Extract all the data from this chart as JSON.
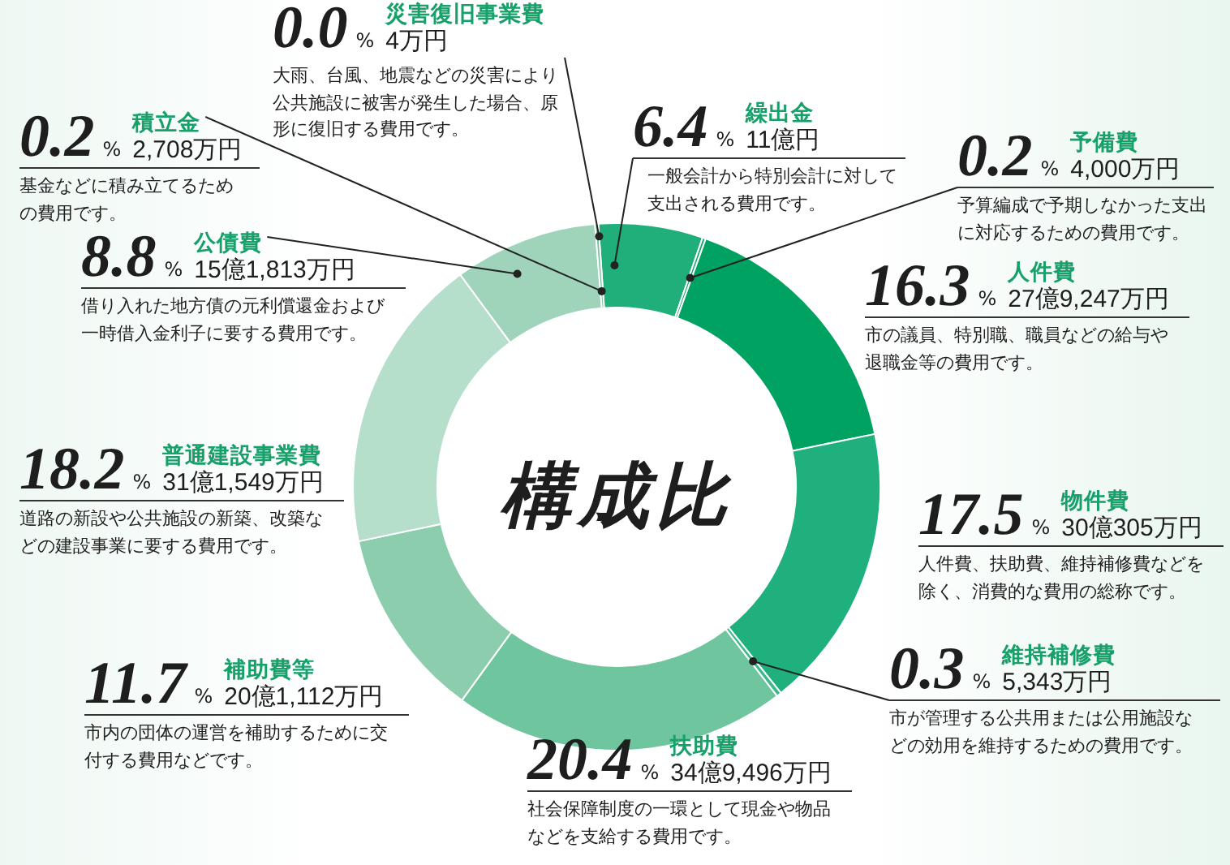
{
  "chart_data": {
    "type": "donut",
    "title": "構成比",
    "categories": [
      "繰出金",
      "予備費",
      "人件費",
      "物件費",
      "維持補修費",
      "扶助費",
      "補助費等",
      "普通建設事業費",
      "公債費",
      "積立金",
      "災害復旧事業費"
    ],
    "values": [
      6.4,
      0.2,
      16.3,
      17.5,
      0.3,
      20.4,
      11.7,
      18.2,
      8.8,
      0.2,
      0.0
    ],
    "colors": [
      "#20ae7a",
      "#16a870",
      "#00a262",
      "#1fb07e",
      "#3db98b",
      "#6ec59e",
      "#8ccdae",
      "#b5decb",
      "#9fd4bb",
      "#6fbf98",
      "#3a9c74"
    ],
    "value_labels": [
      "6.4%",
      "0.2%",
      "16.3%",
      "17.5%",
      "0.3%",
      "20.4%",
      "11.7%",
      "18.2%",
      "8.8%",
      "0.2%",
      "0.0%"
    ],
    "annotations": [
      "11億円",
      "一般会計から特別会計に対して支出される費用です。",
      "4,000万円",
      "予算編成で予期しなかった支出に対応するための費用です。",
      "27億9,247万円",
      "市の議員、特別職、職員などの給与や退職金等の費用です。",
      "30億305万円",
      "人件費、扶助費、維持補修費などを除く、消費的な費用の総称です。",
      "5,343万円",
      "市が管理する公共用または公用施設などの効用を維持するための費用です。",
      "34億9,496万円",
      "社会保障制度の一環として現金や物品などを支給する費用です。",
      "20億1,112万円",
      "市内の団体の運営を補助するために交付する費用などです。",
      "31億1,549万円",
      "道路の新設や公共施設の新築、改築などの建設事業に要する費用です。",
      "15億1,813万円",
      "借り入れた地方債の元利償還金および一時借入金利子に要する費用です。",
      "2,708万円",
      "基金などに積み立てるための費用です。",
      "4万円",
      "大雨、台風、地震などの災害により公共施設に被害が発生した場合、原形に復旧する費用です。"
    ]
  }
}
